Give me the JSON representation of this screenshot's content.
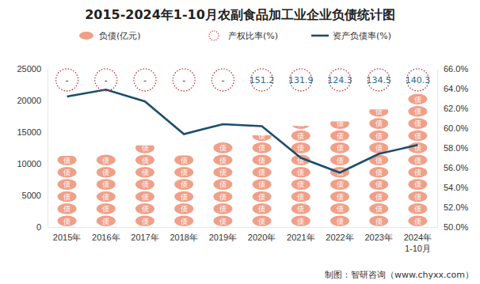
{
  "chart_data": {
    "type": "bar",
    "title": "2015-2024年1-10月农副食品加工业企业负债统计图",
    "categories": [
      "2015年",
      "2016年",
      "2017年",
      "2018年",
      "2019年",
      "2020年",
      "2021年",
      "2022年",
      "2023年",
      "2024年\n1-10月"
    ],
    "series": [
      {
        "name": "负债(亿元)",
        "type": "pictorial_bar",
        "color": "#f0a089",
        "marker": "债",
        "values": [
          11250,
          11600,
          12900,
          11300,
          13600,
          14500,
          16000,
          16700,
          18600,
          21100
        ]
      },
      {
        "name": "产权比率(%)",
        "type": "label",
        "color": "#c8313a",
        "marker": "circle",
        "line_style": "dotted",
        "data_labels": true,
        "values": [
          null,
          null,
          null,
          null,
          null,
          151.2,
          131.9,
          124.3,
          134.5,
          140.3
        ],
        "value_labels": [
          "-",
          "-",
          "-",
          "-",
          "-",
          "151.2",
          "131.9",
          "124.3",
          "134.5",
          "140.3"
        ]
      },
      {
        "name": "资产负债率(%)",
        "type": "line",
        "color": "#1d4e6b",
        "axis": "y2",
        "values": [
          63.2,
          63.9,
          62.7,
          59.4,
          60.4,
          60.2,
          57.0,
          55.5,
          57.4,
          58.3
        ]
      }
    ],
    "ylim": [
      0,
      25000
    ],
    "yticks": [
      0,
      5000,
      10000,
      15000,
      20000,
      25000
    ],
    "y2lim": [
      50,
      66
    ],
    "y2ticks": [
      {
        "value": 50,
        "label": "50.0%"
      },
      {
        "value": 52,
        "label": "52.0%"
      },
      {
        "value": 54,
        "label": "54.0%"
      },
      {
        "value": 56,
        "label": "56.0%"
      },
      {
        "value": 58,
        "label": "58.0%"
      },
      {
        "value": 60,
        "label": "60.0%"
      },
      {
        "value": 62,
        "label": "62.0%"
      },
      {
        "value": 64,
        "label": "64.0%"
      },
      {
        "value": 66,
        "label": "66.0%"
      }
    ],
    "legend": "top",
    "annotations": [
      "制图：智研咨询（www.chyxx.com）"
    ]
  }
}
